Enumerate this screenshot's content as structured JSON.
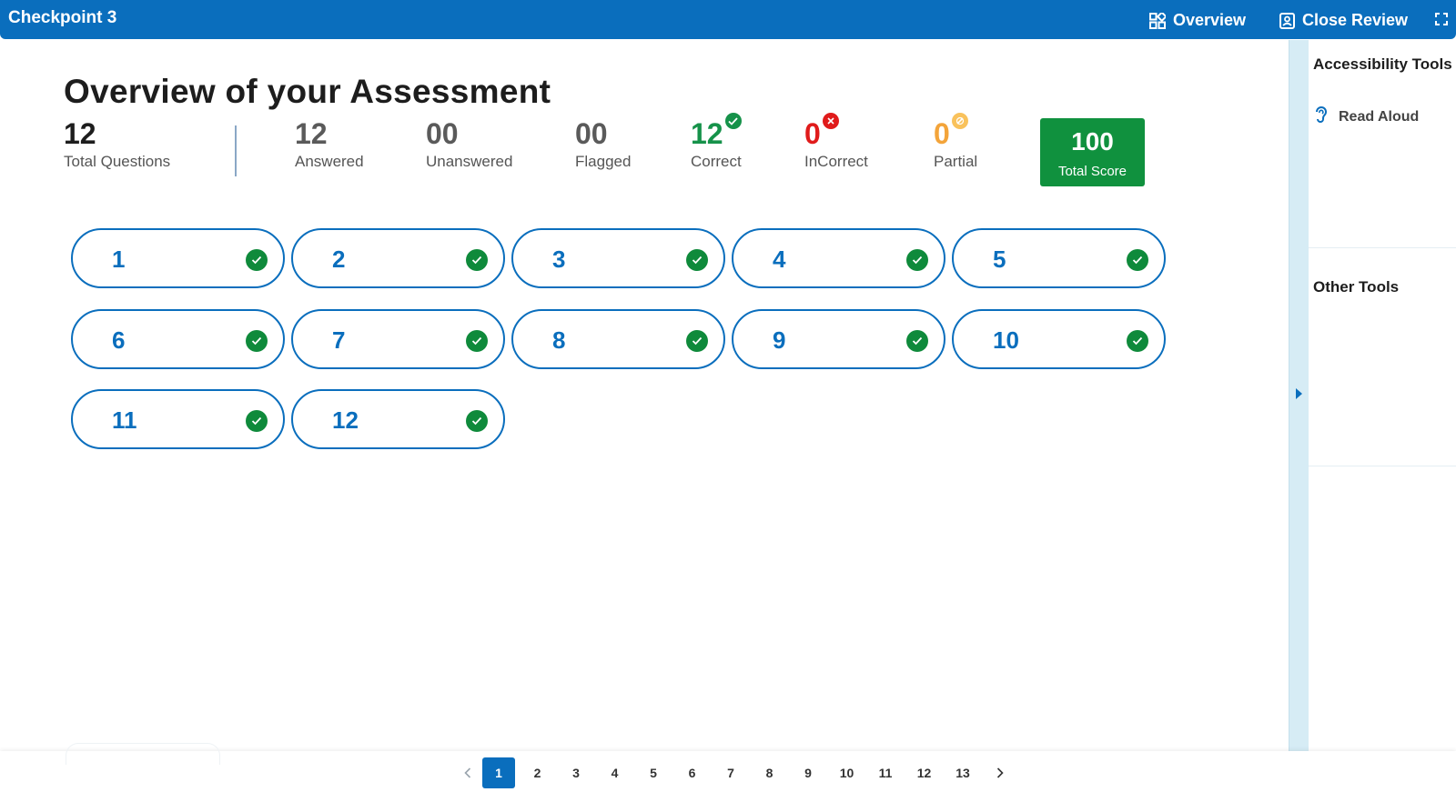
{
  "header": {
    "title": "Checkpoint 3",
    "overview_label": "Overview",
    "close_review_label": "Close Review"
  },
  "main": {
    "page_title": "Overview of your Assessment",
    "stats": {
      "total": {
        "value": "12",
        "label": "Total Questions"
      },
      "answered": {
        "value": "12",
        "label": "Answered"
      },
      "unanswered": {
        "value": "00",
        "label": "Unanswered"
      },
      "flagged": {
        "value": "00",
        "label": "Flagged"
      },
      "correct": {
        "value": "12",
        "label": "Correct"
      },
      "incorrect": {
        "value": "0",
        "label": "InCorrect"
      },
      "partial": {
        "value": "0",
        "label": "Partial"
      }
    },
    "score": {
      "value": "100",
      "label": "Total Score"
    },
    "questions": [
      "1",
      "2",
      "3",
      "4",
      "5",
      "6",
      "7",
      "8",
      "9",
      "10",
      "11",
      "12"
    ]
  },
  "side_panel": {
    "accessibility_title": "Accessibility Tools",
    "read_aloud_label": "Read Aloud",
    "other_title": "Other Tools"
  },
  "pagination": {
    "pages": [
      "1",
      "2",
      "3",
      "4",
      "5",
      "6",
      "7",
      "8",
      "9",
      "10",
      "11",
      "12",
      "13"
    ],
    "active": "1"
  },
  "colors": {
    "brand": "#0a6ebd",
    "correct": "#16924a",
    "incorrect": "#e01b1b",
    "partial": "#f3a43a",
    "score_bg": "#10913e"
  }
}
